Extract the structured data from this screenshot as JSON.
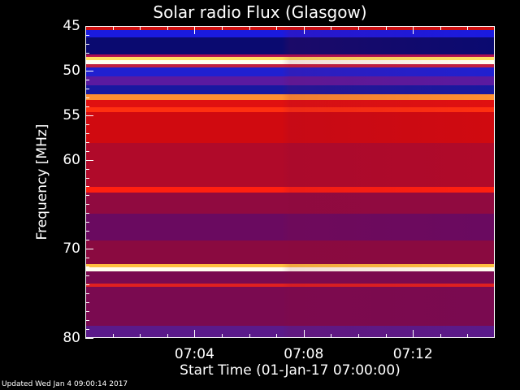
{
  "chart_data": {
    "type": "heatmap",
    "title": "Solar radio Flux (Glasgow)",
    "xlabel": "Start Time (01-Jan-17 07:00:00)",
    "ylabel": "Frequency [MHz]",
    "xlim": [
      "07:00",
      "07:15"
    ],
    "ylim": [
      45,
      80
    ],
    "y_direction": "increasing-downward",
    "x_ticks": [
      "07:04",
      "07:08",
      "07:12"
    ],
    "y_ticks": [
      45,
      50,
      55,
      60,
      70,
      80
    ],
    "bands": [
      {
        "from": 45.0,
        "to": 45.4,
        "color": "#d01010"
      },
      {
        "from": 45.4,
        "to": 46.2,
        "color": "#1a1ae0"
      },
      {
        "from": 46.2,
        "to": 48.1,
        "color": "#0a0a70"
      },
      {
        "from": 48.1,
        "to": 48.4,
        "color": "#b01050"
      },
      {
        "from": 48.4,
        "to": 48.7,
        "color": "#ffe060"
      },
      {
        "from": 48.7,
        "to": 49.2,
        "color": "#fffff0"
      },
      {
        "from": 49.2,
        "to": 49.6,
        "color": "#c02040"
      },
      {
        "from": 49.6,
        "to": 50.6,
        "color": "#2020d0"
      },
      {
        "from": 50.6,
        "to": 51.6,
        "color": "#5a1aa0"
      },
      {
        "from": 51.6,
        "to": 52.6,
        "color": "#1818a0"
      },
      {
        "from": 52.6,
        "to": 53.2,
        "color": "#ff9030"
      },
      {
        "from": 53.2,
        "to": 54.0,
        "color": "#e01010"
      },
      {
        "from": 54.0,
        "to": 54.6,
        "color": "#ff3010"
      },
      {
        "from": 54.6,
        "to": 58.0,
        "color": "#d00a10"
      },
      {
        "from": 58.0,
        "to": 63.0,
        "color": "#b00a2a"
      },
      {
        "from": 63.0,
        "to": 63.6,
        "color": "#ff2010"
      },
      {
        "from": 63.6,
        "to": 66.0,
        "color": "#900a40"
      },
      {
        "from": 66.0,
        "to": 69.0,
        "color": "#6a0a60"
      },
      {
        "from": 69.0,
        "to": 71.6,
        "color": "#8a0a40"
      },
      {
        "from": 71.6,
        "to": 72.0,
        "color": "#ffc040"
      },
      {
        "from": 72.0,
        "to": 72.4,
        "color": "#fffff0"
      },
      {
        "from": 72.4,
        "to": 73.8,
        "color": "#7a0a50"
      },
      {
        "from": 73.8,
        "to": 74.2,
        "color": "#e02020"
      },
      {
        "from": 74.2,
        "to": 78.5,
        "color": "#7a0a50"
      },
      {
        "from": 78.5,
        "to": 80.0,
        "color": "#5a1a8a"
      }
    ]
  },
  "footer": "Updated Wed Jan  4 09:00:14 2017"
}
